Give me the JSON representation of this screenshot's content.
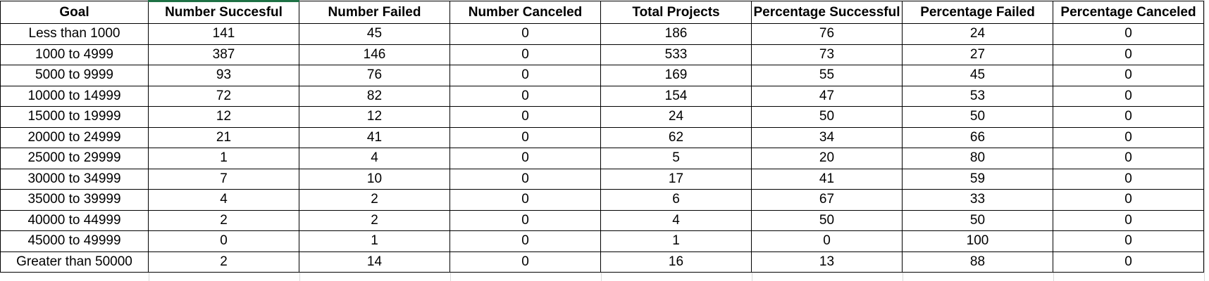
{
  "table": {
    "headers": [
      "Goal",
      "Number Succesful",
      "Number Failed",
      "Number Canceled",
      "Total Projects",
      "Percentage Successful",
      "Percentage Failed",
      "Percentage Canceled"
    ],
    "rows": [
      [
        "Less than 1000",
        "141",
        "45",
        "0",
        "186",
        "76",
        "24",
        "0"
      ],
      [
        "1000 to 4999",
        "387",
        "146",
        "0",
        "533",
        "73",
        "27",
        "0"
      ],
      [
        "5000 to 9999",
        "93",
        "76",
        "0",
        "169",
        "55",
        "45",
        "0"
      ],
      [
        "10000 to 14999",
        "72",
        "82",
        "0",
        "154",
        "47",
        "53",
        "0"
      ],
      [
        "15000 to 19999",
        "12",
        "12",
        "0",
        "24",
        "50",
        "50",
        "0"
      ],
      [
        "20000 to 24999",
        "21",
        "41",
        "0",
        "62",
        "34",
        "66",
        "0"
      ],
      [
        "25000 to 29999",
        "1",
        "4",
        "0",
        "5",
        "20",
        "80",
        "0"
      ],
      [
        "30000 to 34999",
        "7",
        "10",
        "0",
        "17",
        "41",
        "59",
        "0"
      ],
      [
        "35000 to 39999",
        "4",
        "2",
        "0",
        "6",
        "67",
        "33",
        "0"
      ],
      [
        "40000 to 44999",
        "2",
        "2",
        "0",
        "4",
        "50",
        "50",
        "0"
      ],
      [
        "45000 to 49999",
        "0",
        "1",
        "0",
        "1",
        "0",
        "100",
        "0"
      ],
      [
        "Greater than 50000",
        "2",
        "14",
        "0",
        "16",
        "13",
        "88",
        "0"
      ]
    ]
  },
  "colors": {
    "active_cell_border": "#1e7145",
    "gridline": "#d9d9d9",
    "border": "#000000"
  }
}
